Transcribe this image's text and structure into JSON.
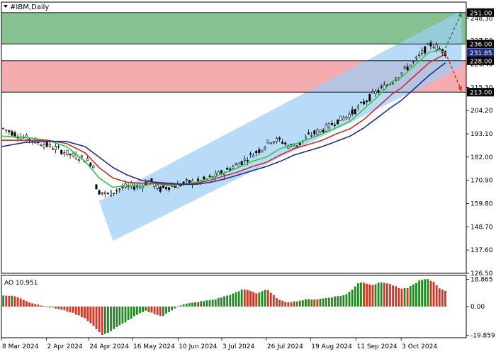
{
  "chart_data": {
    "type": "candlestick",
    "title": "#IBM,Daily",
    "main_panel": {
      "ylim": [
        126.5,
        256.0
      ],
      "y_ticks": [
        "126.50",
        "137.60",
        "148.70",
        "159.80",
        "170.90",
        "182.00",
        "193.10",
        "204.20",
        "215.30",
        "226.40",
        "237.50",
        "248.30"
      ],
      "price_tags": [
        {
          "label": "251.00",
          "value": 251.0,
          "color": "#000000"
        },
        {
          "label": "236.00",
          "value": 236.0,
          "color": "#000000"
        },
        {
          "label": "231.85",
          "value": 231.85,
          "color": "#1f2d8c"
        },
        {
          "label": "228.00",
          "value": 228.0,
          "color": "#000000"
        },
        {
          "label": "213.00",
          "value": 213.0,
          "color": "#000000"
        }
      ],
      "zones": [
        {
          "kind": "buy",
          "from": 236.0,
          "to": 251.0,
          "color": "#7fbf8b"
        },
        {
          "kind": "sell",
          "from": 213.0,
          "to": 228.0,
          "color": "#f4a8aa"
        }
      ],
      "levels": [
        251.0,
        236.0,
        228.0,
        213.0
      ],
      "channel": {
        "color": "#9dcff5",
        "upper": [
          [
            0.21,
            161.0
          ],
          [
            0.99,
            252.0
          ]
        ],
        "lower": [
          [
            0.24,
            142.0
          ],
          [
            0.99,
            225.0
          ]
        ]
      },
      "arrows": [
        {
          "direction": "up",
          "from": [
            0.955,
            234.0
          ],
          "to": [
            0.99,
            251.0
          ],
          "color": "#2e8b3a"
        },
        {
          "direction": "down",
          "from": [
            0.955,
            232.0
          ],
          "to": [
            0.99,
            213.5
          ],
          "color": "#e0301e"
        }
      ],
      "moving_averages": [
        {
          "color": "#2ecc40",
          "points": [
            [
              0.0,
              192
            ],
            [
              0.05,
              191.5
            ],
            [
              0.1,
              190
            ],
            [
              0.14,
              187
            ],
            [
              0.18,
              180
            ],
            [
              0.21,
              172
            ],
            [
              0.24,
              167.5
            ],
            [
              0.27,
              168.5
            ],
            [
              0.3,
              168
            ],
            [
              0.33,
              169.5
            ],
            [
              0.36,
              168.5
            ],
            [
              0.39,
              169
            ],
            [
              0.42,
              170
            ],
            [
              0.45,
              172
            ],
            [
              0.48,
              174.5
            ],
            [
              0.51,
              177
            ],
            [
              0.54,
              180
            ],
            [
              0.57,
              182
            ],
            [
              0.6,
              186
            ],
            [
              0.63,
              188
            ],
            [
              0.66,
              190.5
            ],
            [
              0.69,
              193
            ],
            [
              0.72,
              196
            ],
            [
              0.75,
              199
            ],
            [
              0.78,
              205
            ],
            [
              0.81,
              211
            ],
            [
              0.84,
              218
            ],
            [
              0.86,
              220
            ],
            [
              0.88,
              224
            ],
            [
              0.9,
              228
            ],
            [
              0.92,
              232
            ],
            [
              0.94,
              233
            ],
            [
              0.955,
              232
            ]
          ]
        },
        {
          "color": "#d22b2b",
          "points": [
            [
              0.0,
              190
            ],
            [
              0.05,
              190
            ],
            [
              0.1,
              190
            ],
            [
              0.14,
              188.5
            ],
            [
              0.18,
              184
            ],
            [
              0.21,
              177
            ],
            [
              0.24,
              172
            ],
            [
              0.27,
              170
            ],
            [
              0.3,
              169.5
            ],
            [
              0.33,
              169.5
            ],
            [
              0.36,
              169
            ],
            [
              0.39,
              169
            ],
            [
              0.42,
              169.5
            ],
            [
              0.45,
              171
            ],
            [
              0.48,
              173
            ],
            [
              0.51,
              175
            ],
            [
              0.54,
              177.5
            ],
            [
              0.57,
              179.5
            ],
            [
              0.6,
              183
            ],
            [
              0.63,
              186
            ],
            [
              0.66,
              188
            ],
            [
              0.69,
              190
            ],
            [
              0.72,
              193
            ],
            [
              0.75,
              195.5
            ],
            [
              0.78,
              200
            ],
            [
              0.81,
              206
            ],
            [
              0.84,
              212
            ],
            [
              0.86,
              215
            ],
            [
              0.88,
              219
            ],
            [
              0.9,
              223
            ],
            [
              0.92,
              227
            ],
            [
              0.94,
              229.5
            ],
            [
              0.955,
              231
            ]
          ]
        },
        {
          "color": "#1f2d8c",
          "points": [
            [
              0.0,
              187
            ],
            [
              0.05,
              189
            ],
            [
              0.1,
              189.5
            ],
            [
              0.14,
              189.5
            ],
            [
              0.18,
              187
            ],
            [
              0.21,
              182
            ],
            [
              0.24,
              177
            ],
            [
              0.27,
              173.5
            ],
            [
              0.3,
              171
            ],
            [
              0.33,
              170
            ],
            [
              0.36,
              169.5
            ],
            [
              0.39,
              169
            ],
            [
              0.42,
              169
            ],
            [
              0.45,
              170
            ],
            [
              0.48,
              171.5
            ],
            [
              0.51,
              173.5
            ],
            [
              0.54,
              175.5
            ],
            [
              0.57,
              177.5
            ],
            [
              0.6,
              180
            ],
            [
              0.63,
              183
            ],
            [
              0.66,
              185
            ],
            [
              0.69,
              187
            ],
            [
              0.72,
              189.5
            ],
            [
              0.75,
              192
            ],
            [
              0.78,
              196
            ],
            [
              0.81,
              201
            ],
            [
              0.84,
              206
            ],
            [
              0.86,
              209
            ],
            [
              0.88,
              213
            ],
            [
              0.9,
              217
            ],
            [
              0.92,
              221
            ],
            [
              0.94,
              224.5
            ],
            [
              0.955,
              227
            ]
          ]
        }
      ],
      "candle_path": [
        [
          0.0,
          196
        ],
        [
          0.04,
          192
        ],
        [
          0.08,
          189
        ],
        [
          0.12,
          186
        ],
        [
          0.15,
          183
        ],
        [
          0.18,
          181
        ],
        [
          0.2,
          178
        ],
        [
          0.205,
          166
        ],
        [
          0.23,
          164
        ],
        [
          0.25,
          166.5
        ],
        [
          0.27,
          168
        ],
        [
          0.3,
          168
        ],
        [
          0.32,
          171
        ],
        [
          0.34,
          166.5
        ],
        [
          0.36,
          168
        ],
        [
          0.38,
          168.5
        ],
        [
          0.4,
          170
        ],
        [
          0.42,
          170
        ],
        [
          0.45,
          172
        ],
        [
          0.48,
          175
        ],
        [
          0.5,
          177.5
        ],
        [
          0.52,
          180
        ],
        [
          0.545,
          184
        ],
        [
          0.56,
          186
        ],
        [
          0.58,
          190
        ],
        [
          0.6,
          190
        ],
        [
          0.62,
          187
        ],
        [
          0.64,
          188
        ],
        [
          0.66,
          192
        ],
        [
          0.68,
          194
        ],
        [
          0.7,
          196
        ],
        [
          0.72,
          199
        ],
        [
          0.74,
          201
        ],
        [
          0.76,
          204
        ],
        [
          0.78,
          208
        ],
        [
          0.8,
          212
        ],
        [
          0.82,
          215
        ],
        [
          0.84,
          218
        ],
        [
          0.855,
          221
        ],
        [
          0.87,
          224
        ],
        [
          0.89,
          228
        ],
        [
          0.91,
          233
        ],
        [
          0.925,
          236
        ],
        [
          0.94,
          234
        ],
        [
          0.955,
          232
        ]
      ]
    },
    "indicator_panel": {
      "name": "AO",
      "label": "AO 10.951",
      "ylim": [
        -21.0,
        21.0
      ],
      "y_ticks": [
        "18.865",
        "0.00",
        "-19.859"
      ],
      "positive_color": "#1f8a1f",
      "negative_color": "#e0301e",
      "profile": [
        [
          0.0,
          8
        ],
        [
          0.03,
          7
        ],
        [
          0.06,
          3
        ],
        [
          0.09,
          0.5
        ],
        [
          0.12,
          -1.5
        ],
        [
          0.15,
          -4
        ],
        [
          0.18,
          -8
        ],
        [
          0.2,
          -14
        ],
        [
          0.215,
          -19.5
        ],
        [
          0.23,
          -18
        ],
        [
          0.25,
          -14
        ],
        [
          0.27,
          -10
        ],
        [
          0.29,
          -6
        ],
        [
          0.31,
          -3
        ],
        [
          0.33,
          -5
        ],
        [
          0.345,
          -7
        ],
        [
          0.36,
          -4
        ],
        [
          0.38,
          0.5
        ],
        [
          0.4,
          2
        ],
        [
          0.42,
          3
        ],
        [
          0.44,
          4
        ],
        [
          0.46,
          5
        ],
        [
          0.48,
          7
        ],
        [
          0.5,
          9
        ],
        [
          0.52,
          12
        ],
        [
          0.535,
          11
        ],
        [
          0.55,
          9
        ],
        [
          0.57,
          12
        ],
        [
          0.585,
          8
        ],
        [
          0.6,
          4
        ],
        [
          0.62,
          3
        ],
        [
          0.64,
          4
        ],
        [
          0.66,
          5
        ],
        [
          0.68,
          5
        ],
        [
          0.7,
          6
        ],
        [
          0.72,
          7
        ],
        [
          0.74,
          8
        ],
        [
          0.755,
          12
        ],
        [
          0.77,
          17
        ],
        [
          0.785,
          16
        ],
        [
          0.8,
          15
        ],
        [
          0.82,
          17
        ],
        [
          0.84,
          15
        ],
        [
          0.86,
          12
        ],
        [
          0.875,
          13
        ],
        [
          0.89,
          16
        ],
        [
          0.9,
          18
        ],
        [
          0.915,
          19
        ],
        [
          0.93,
          17
        ],
        [
          0.945,
          12
        ],
        [
          0.955,
          10.95
        ]
      ],
      "bar_count": 153
    },
    "x_ticks": [
      "8 Mar 2024",
      "2 Apr 2024",
      "24 Apr 2024",
      "16 May 2024",
      "10 Jun 2024",
      "3 Jul 2024",
      "26 Jul 2024",
      "19 Aug 2024",
      "11 Sep 2024",
      "3 Oct 2024"
    ],
    "candle_count": 153
  }
}
